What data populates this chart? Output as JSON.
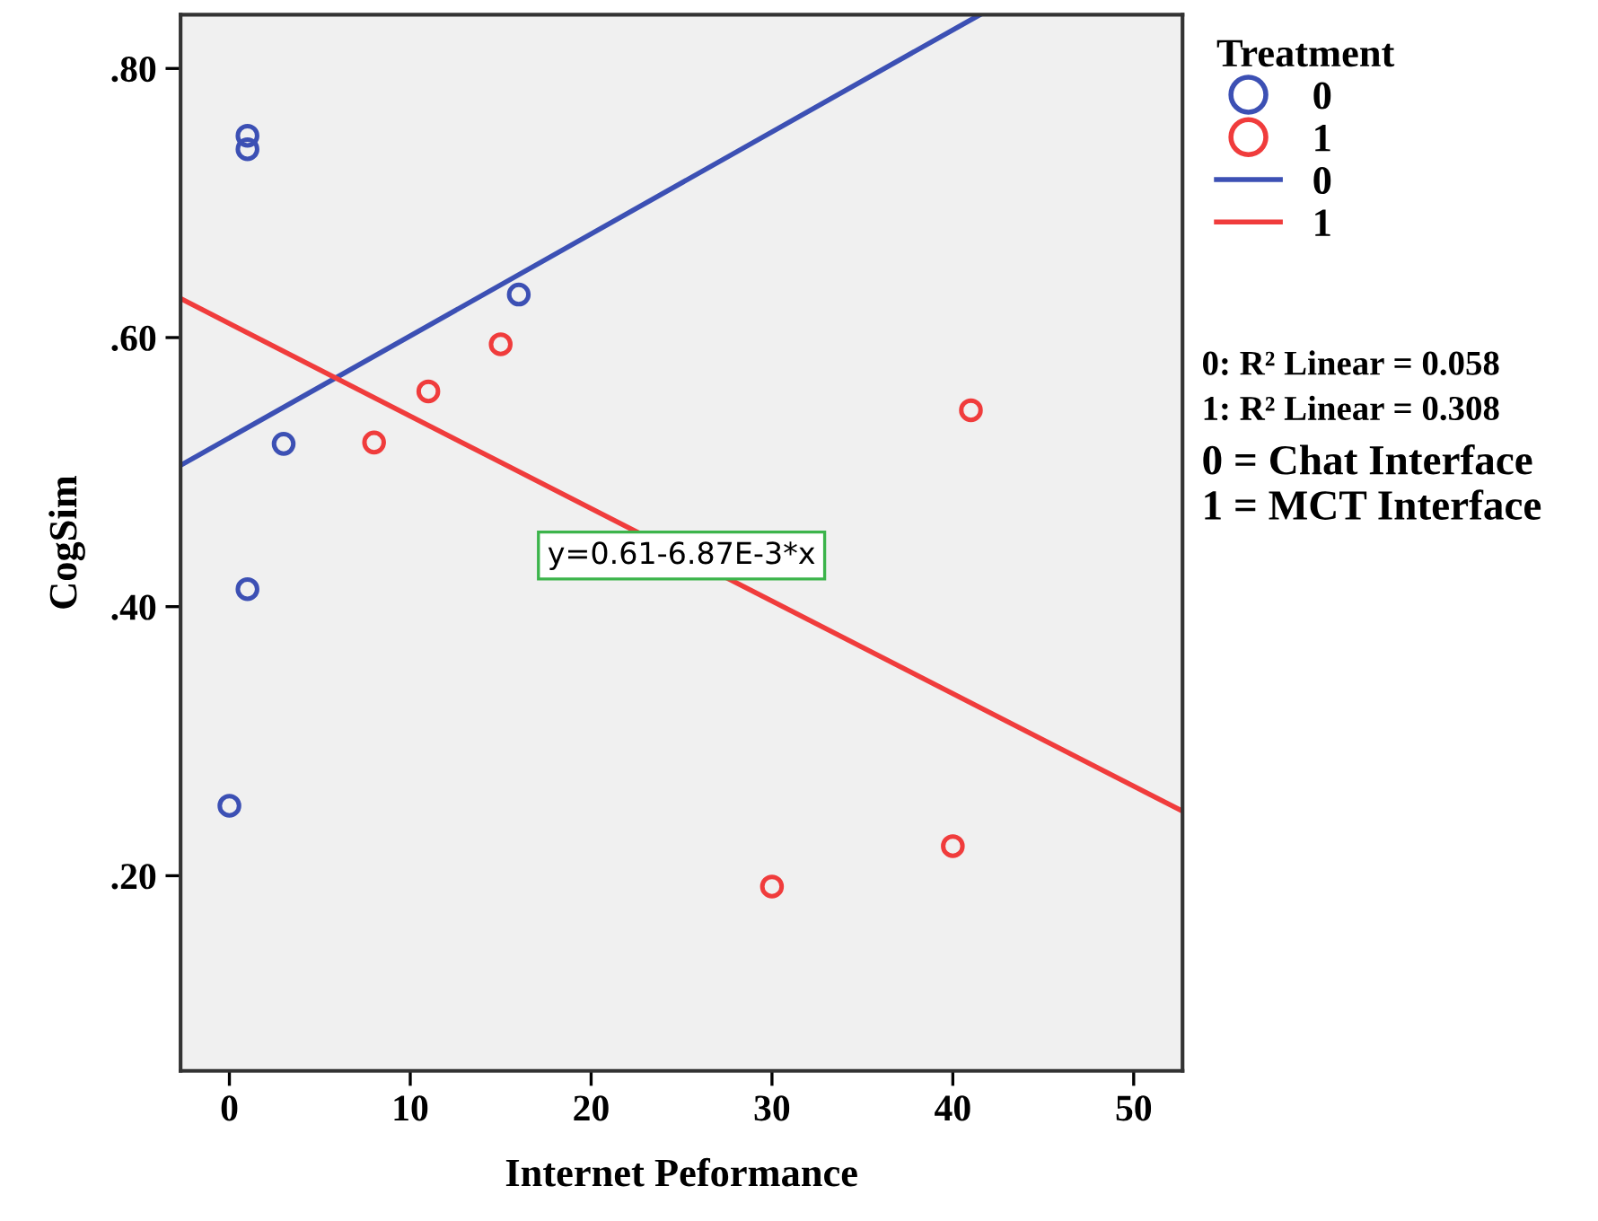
{
  "chart_data": {
    "type": "scatter",
    "xlabel": "Internet Peformance",
    "ylabel": "CogSim",
    "legend_title": "Treatment",
    "legend": "right",
    "grid": false,
    "marker": "circle",
    "xlim": [
      -2.7,
      52.7
    ],
    "xticks": [
      0,
      10,
      20,
      30,
      40,
      50
    ],
    "ylim": [
      0.055,
      0.84
    ],
    "yticks": [
      {
        "value": 0.2,
        "label": ".20"
      },
      {
        "value": 0.4,
        "label": ".40"
      },
      {
        "value": 0.6,
        "label": ".60"
      },
      {
        "value": 0.8,
        "label": ".80"
      }
    ],
    "series": [
      {
        "name": "0",
        "color": "#3c50b4",
        "x": [
          1,
          1,
          3,
          16,
          1,
          0
        ],
        "values": [
          0.75,
          0.74,
          0.521,
          0.632,
          0.413,
          0.252
        ]
      },
      {
        "name": "1",
        "color": "#f03c3c",
        "x": [
          8,
          11,
          15,
          41,
          40,
          30
        ],
        "values": [
          0.522,
          0.56,
          0.595,
          0.546,
          0.222,
          0.192
        ]
      },
      {
        "name": "0",
        "type": "line",
        "marker": "none",
        "color": "#3c50b4",
        "x": [
          -2.7,
          41.5
        ],
        "values": [
          0.505,
          0.84
        ]
      },
      {
        "name": "1",
        "type": "line",
        "marker": "none",
        "color": "#f03c3c",
        "x": [
          -2.7,
          52.7
        ],
        "values": [
          0.629,
          0.248
        ]
      }
    ],
    "annotations": [
      {
        "text": "y=0.61-6.87E-3*x",
        "x": 25,
        "y": 0.438
      },
      "0: R² Linear = 0.058",
      "1: R² Linear = 0.308",
      "0 = Chat Interface",
      "1 = MCT Interface"
    ]
  }
}
